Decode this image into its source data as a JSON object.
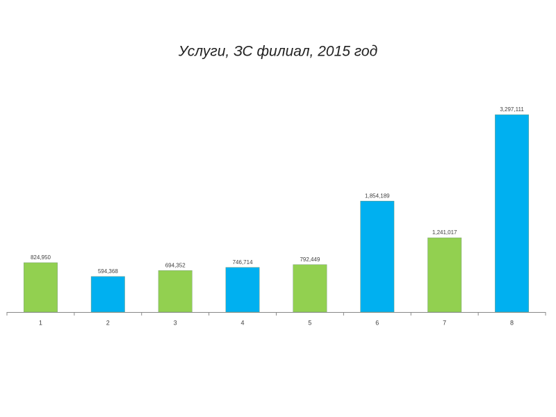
{
  "chart_data": {
    "type": "bar",
    "title": "Услуги, ЗС филиал, 2015 год",
    "categories": [
      "1",
      "2",
      "3",
      "4",
      "5",
      "6",
      "7",
      "8"
    ],
    "values": [
      824950,
      594368,
      694352,
      746714,
      792449,
      1854189,
      1241017,
      3297111
    ],
    "value_labels": [
      "824,950",
      "594,368",
      "694,352",
      "746,714",
      "792,449",
      "1,854,189",
      "1,241,017",
      "3,297,111"
    ],
    "colors": [
      "#92d050",
      "#00b0f0",
      "#92d050",
      "#00b0f0",
      "#92d050",
      "#00b0f0",
      "#92d050",
      "#00b0f0"
    ]
  }
}
